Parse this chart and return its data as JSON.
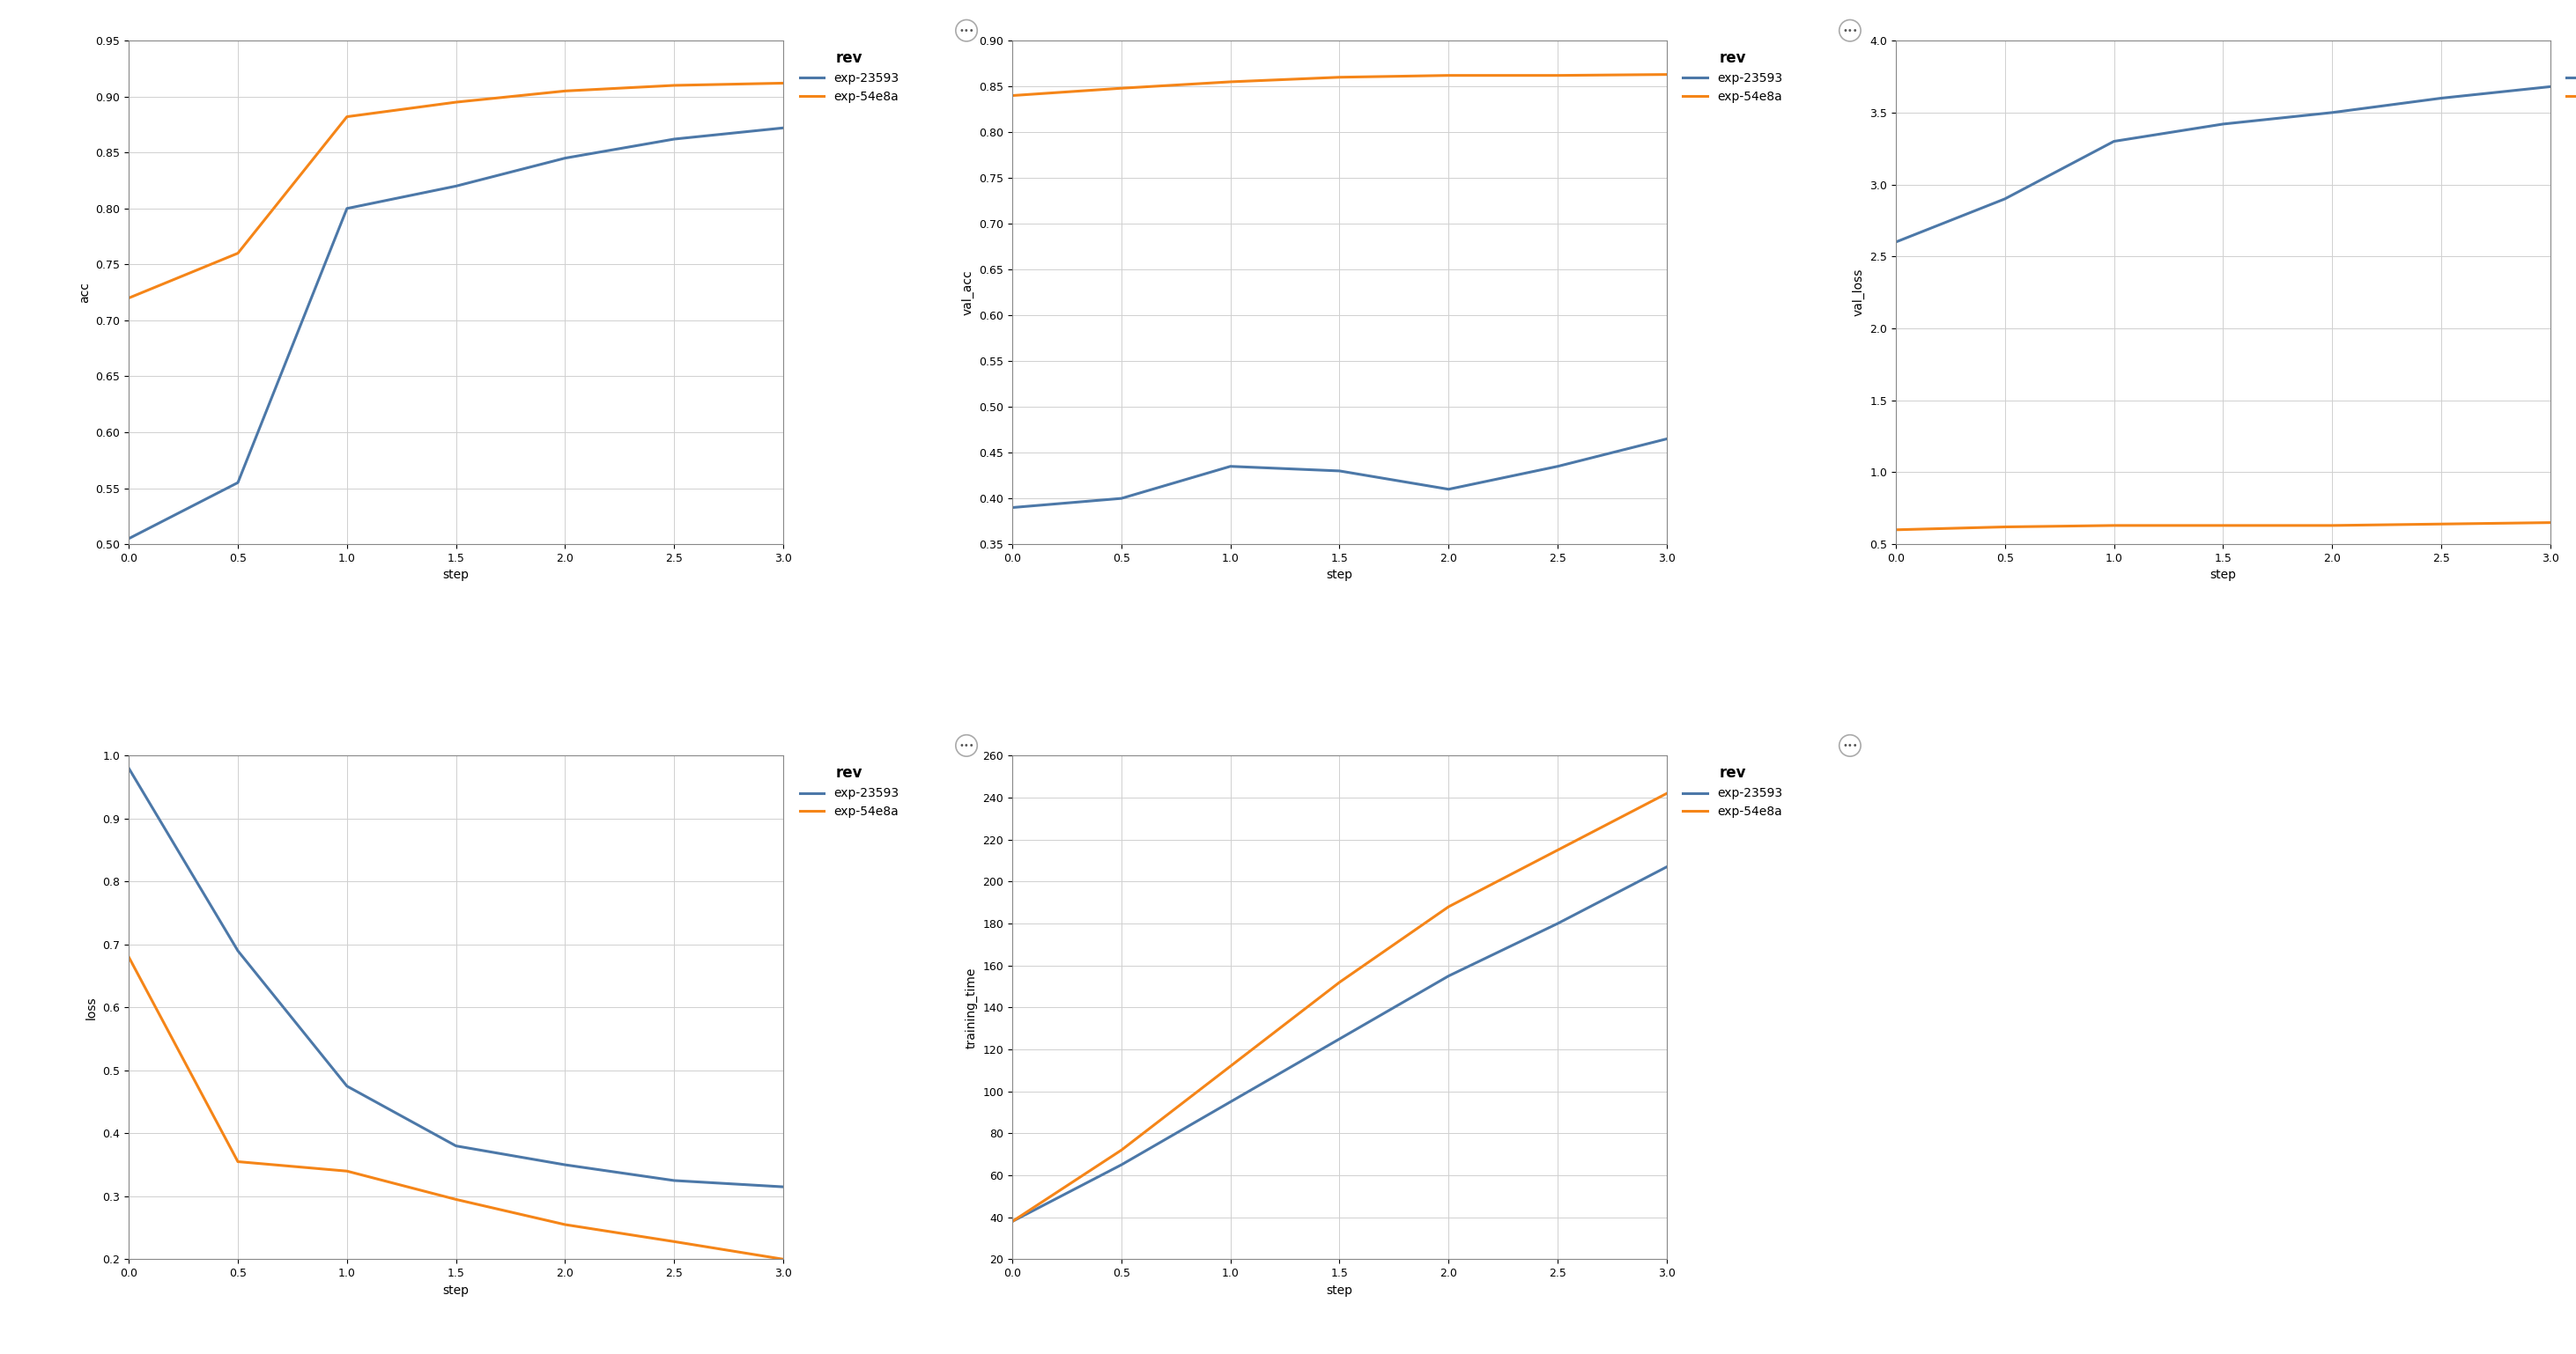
{
  "blue_color": "#4c78a8",
  "orange_color": "#f58518",
  "legend_title": "rev",
  "exp1_label": "exp-23593",
  "exp2_label": "exp-54e8a",
  "steps": [
    0.0,
    0.5,
    1.0,
    1.5,
    2.0,
    2.5,
    3.0
  ],
  "acc_exp1": [
    0.505,
    0.555,
    0.8,
    0.82,
    0.845,
    0.862,
    0.872
  ],
  "acc_exp2": [
    0.72,
    0.76,
    0.882,
    0.895,
    0.905,
    0.91,
    0.912
  ],
  "acc_ylim": [
    0.5,
    0.95
  ],
  "acc_yticks": [
    0.5,
    0.55,
    0.6,
    0.65,
    0.7,
    0.75,
    0.8,
    0.85,
    0.9,
    0.95
  ],
  "acc_ylabel": "acc",
  "val_acc_exp1": [
    0.39,
    0.4,
    0.435,
    0.43,
    0.41,
    0.435,
    0.465
  ],
  "val_acc_exp2": [
    0.84,
    0.848,
    0.855,
    0.86,
    0.862,
    0.862,
    0.863
  ],
  "val_acc_ylim": [
    0.35,
    0.9
  ],
  "val_acc_yticks": [
    0.35,
    0.4,
    0.45,
    0.5,
    0.55,
    0.6,
    0.65,
    0.7,
    0.75,
    0.8,
    0.85,
    0.9
  ],
  "val_acc_ylabel": "val_acc",
  "val_loss_exp1": [
    2.6,
    2.9,
    3.3,
    3.42,
    3.5,
    3.6,
    3.68
  ],
  "val_loss_exp2": [
    0.6,
    0.62,
    0.63,
    0.63,
    0.63,
    0.64,
    0.65
  ],
  "val_loss_ylim": [
    0.5,
    4.0
  ],
  "val_loss_yticks": [
    0.5,
    1.0,
    1.5,
    2.0,
    2.5,
    3.0,
    3.5,
    4.0
  ],
  "val_loss_ylabel": "val_loss",
  "loss_exp1": [
    0.98,
    0.69,
    0.475,
    0.38,
    0.35,
    0.325,
    0.315
  ],
  "loss_exp2": [
    0.68,
    0.355,
    0.34,
    0.295,
    0.255,
    0.228,
    0.2
  ],
  "loss_ylim": [
    0.2,
    1.0
  ],
  "loss_yticks": [
    0.2,
    0.3,
    0.4,
    0.5,
    0.6,
    0.7,
    0.8,
    0.9,
    1.0
  ],
  "loss_ylabel": "loss",
  "training_time_exp1": [
    38.0,
    65.0,
    95.0,
    125.0,
    155.0,
    180.0,
    207.0
  ],
  "training_time_exp2": [
    38.0,
    72.0,
    112.0,
    152.0,
    188.0,
    215.0,
    242.0
  ],
  "training_time_ylim": [
    20,
    260
  ],
  "training_time_yticks": [
    20,
    40,
    60,
    80,
    100,
    120,
    140,
    160,
    180,
    200,
    220,
    240,
    260
  ],
  "training_time_ylabel": "training_time",
  "xlabel": "step",
  "xticks": [
    0.0,
    0.5,
    1.0,
    1.5,
    2.0,
    2.5,
    3.0
  ],
  "xlim": [
    0.0,
    3.0
  ],
  "bg_color": "#ffffff",
  "grid_color": "#d0d0d0",
  "title_fontsize": 12,
  "label_fontsize": 10,
  "tick_fontsize": 9,
  "legend_fontsize": 10,
  "line_width": 2.2
}
